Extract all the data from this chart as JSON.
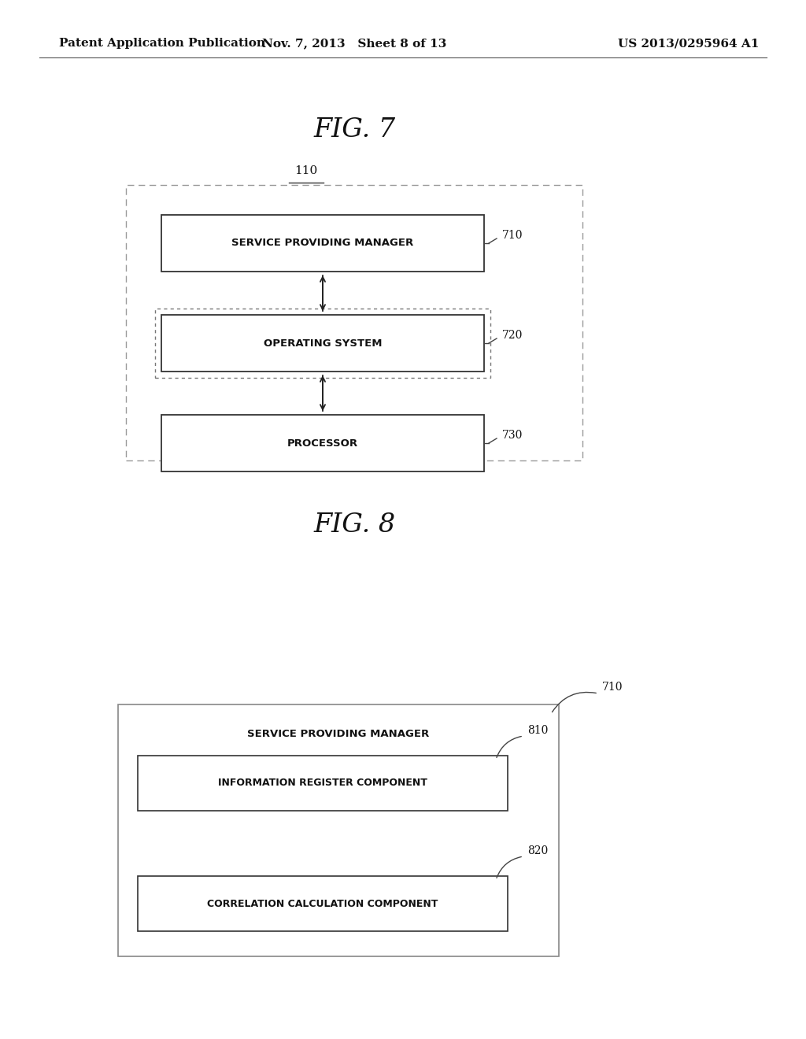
{
  "bg_color": "#ffffff",
  "header_left": "Patent Application Publication",
  "header_mid": "Nov. 7, 2013   Sheet 8 of 13",
  "header_right": "US 2013/0295964 A1",
  "fig7_title": "FIG. 7",
  "fig8_title": "FIG. 8",
  "fig7_label": "110",
  "fig8_label": "710",
  "fig7_box_label": "SERVICE PROVIDING MANAGER",
  "fig7_box_ref1": "710",
  "fig7_box_label2": "OPERATING SYSTEM",
  "fig7_box_ref2": "720",
  "fig7_box_label3": "PROCESSOR",
  "fig7_box_ref3": "730",
  "fig8_outer_label": "SERVICE PROVIDING MANAGER",
  "fig8_inner_label1": "INFORMATION REGISTER COMPONENT",
  "fig8_inner_ref1": "810",
  "fig8_inner_label2": "CORRELATION CALCULATION COMPONENT",
  "fig8_inner_ref2": "820"
}
